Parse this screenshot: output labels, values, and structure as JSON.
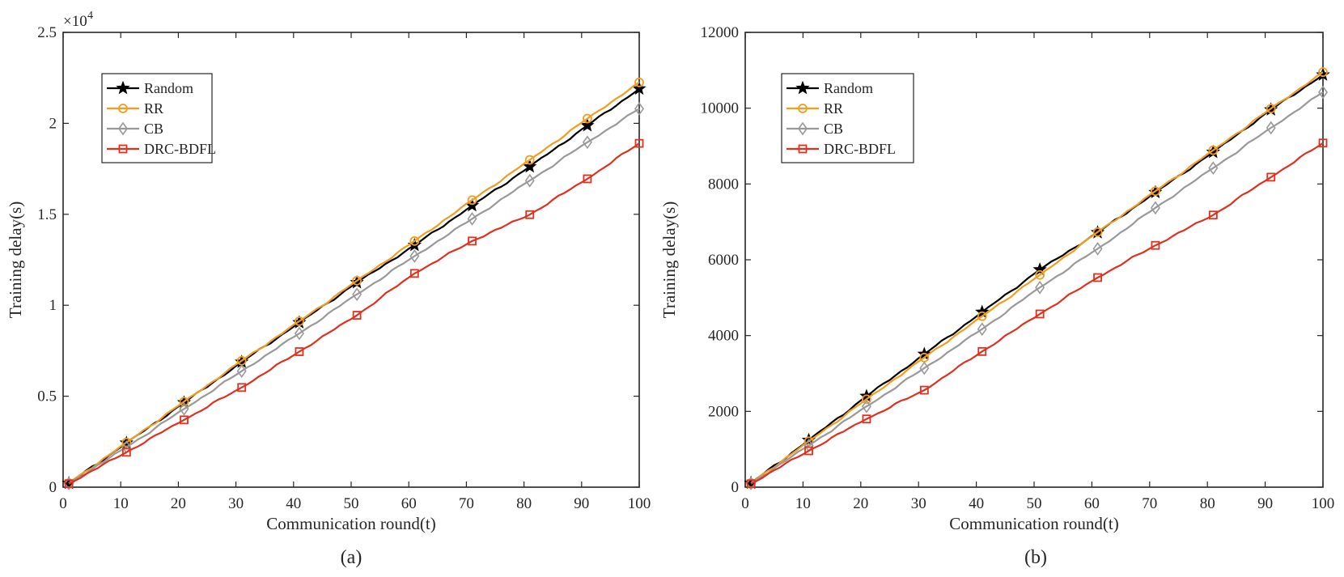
{
  "chart_data": [
    {
      "type": "line",
      "panel_label": "(a)",
      "xlabel": "Communication round(t)",
      "ylabel": "Training delay(s)",
      "xlim": [
        0,
        100
      ],
      "ylim": [
        0,
        25000
      ],
      "x_ticks": [
        0,
        10,
        20,
        30,
        40,
        50,
        60,
        70,
        80,
        90,
        100
      ],
      "x_tick_labels": [
        "0",
        "10",
        "20",
        "30",
        "40",
        "50",
        "60",
        "70",
        "80",
        "90",
        "100"
      ],
      "y_ticks": [
        0,
        5000,
        10000,
        15000,
        20000,
        25000
      ],
      "y_tick_labels": [
        "0",
        "0.5",
        "1",
        "1.5",
        "2",
        "2.5"
      ],
      "y_scale_label": "×10",
      "y_scale_exponent": "4",
      "legend_position": "top-left",
      "grid": false,
      "x": [
        1,
        11,
        21,
        31,
        41,
        51,
        61,
        71,
        81,
        91,
        100
      ],
      "series": [
        {
          "name": "Random",
          "color": "#000000",
          "marker": "star",
          "values": [
            220,
            2430,
            4650,
            6880,
            9050,
            11250,
            13300,
            15480,
            17620,
            19880,
            21900
          ]
        },
        {
          "name": "RR",
          "color": "#f39c1e",
          "marker": "circle",
          "values": [
            220,
            2460,
            4700,
            6950,
            9120,
            11350,
            13530,
            15780,
            17990,
            20260,
            22250
          ]
        },
        {
          "name": "CB",
          "color": "#999999",
          "marker": "diamond",
          "values": [
            200,
            2200,
            4300,
            6380,
            8450,
            10600,
            12700,
            14750,
            16850,
            18960,
            20800
          ]
        },
        {
          "name": "DRC-BDFL",
          "color": "#e0301e",
          "marker": "square",
          "values": [
            190,
            1920,
            3700,
            5480,
            7450,
            9450,
            11750,
            13530,
            14980,
            16950,
            18900
          ]
        }
      ]
    },
    {
      "type": "line",
      "panel_label": "(b)",
      "xlabel": "Communication round(t)",
      "ylabel": "Training delay(s)",
      "xlim": [
        0,
        100
      ],
      "ylim": [
        0,
        12000
      ],
      "x_ticks": [
        0,
        10,
        20,
        30,
        40,
        50,
        60,
        70,
        80,
        90,
        100
      ],
      "x_tick_labels": [
        "0",
        "10",
        "20",
        "30",
        "40",
        "50",
        "60",
        "70",
        "80",
        "90",
        "100"
      ],
      "y_ticks": [
        0,
        2000,
        4000,
        6000,
        8000,
        10000,
        12000
      ],
      "y_tick_labels": [
        "0",
        "2000",
        "4000",
        "6000",
        "8000",
        "10000",
        "12000"
      ],
      "legend_position": "top-left",
      "grid": false,
      "x": [
        1,
        11,
        21,
        31,
        41,
        51,
        61,
        71,
        81,
        91,
        100
      ],
      "series": [
        {
          "name": "Random",
          "color": "#000000",
          "marker": "star",
          "values": [
            110,
            1240,
            2400,
            3510,
            4620,
            5740,
            6720,
            7780,
            8840,
            9960,
            10880
          ]
        },
        {
          "name": "RR",
          "color": "#f39c1e",
          "marker": "circle",
          "values": [
            110,
            1210,
            2320,
            3420,
            4510,
            5600,
            6730,
            7810,
            8890,
            9990,
            10950
          ]
        },
        {
          "name": "CB",
          "color": "#999999",
          "marker": "diamond",
          "values": [
            100,
            1100,
            2130,
            3140,
            4170,
            5270,
            6290,
            7370,
            8420,
            9480,
            10420
          ]
        },
        {
          "name": "DRC-BDFL",
          "color": "#e0301e",
          "marker": "square",
          "values": [
            90,
            960,
            1800,
            2560,
            3580,
            4570,
            5530,
            6380,
            7180,
            8180,
            9080
          ]
        }
      ]
    }
  ]
}
